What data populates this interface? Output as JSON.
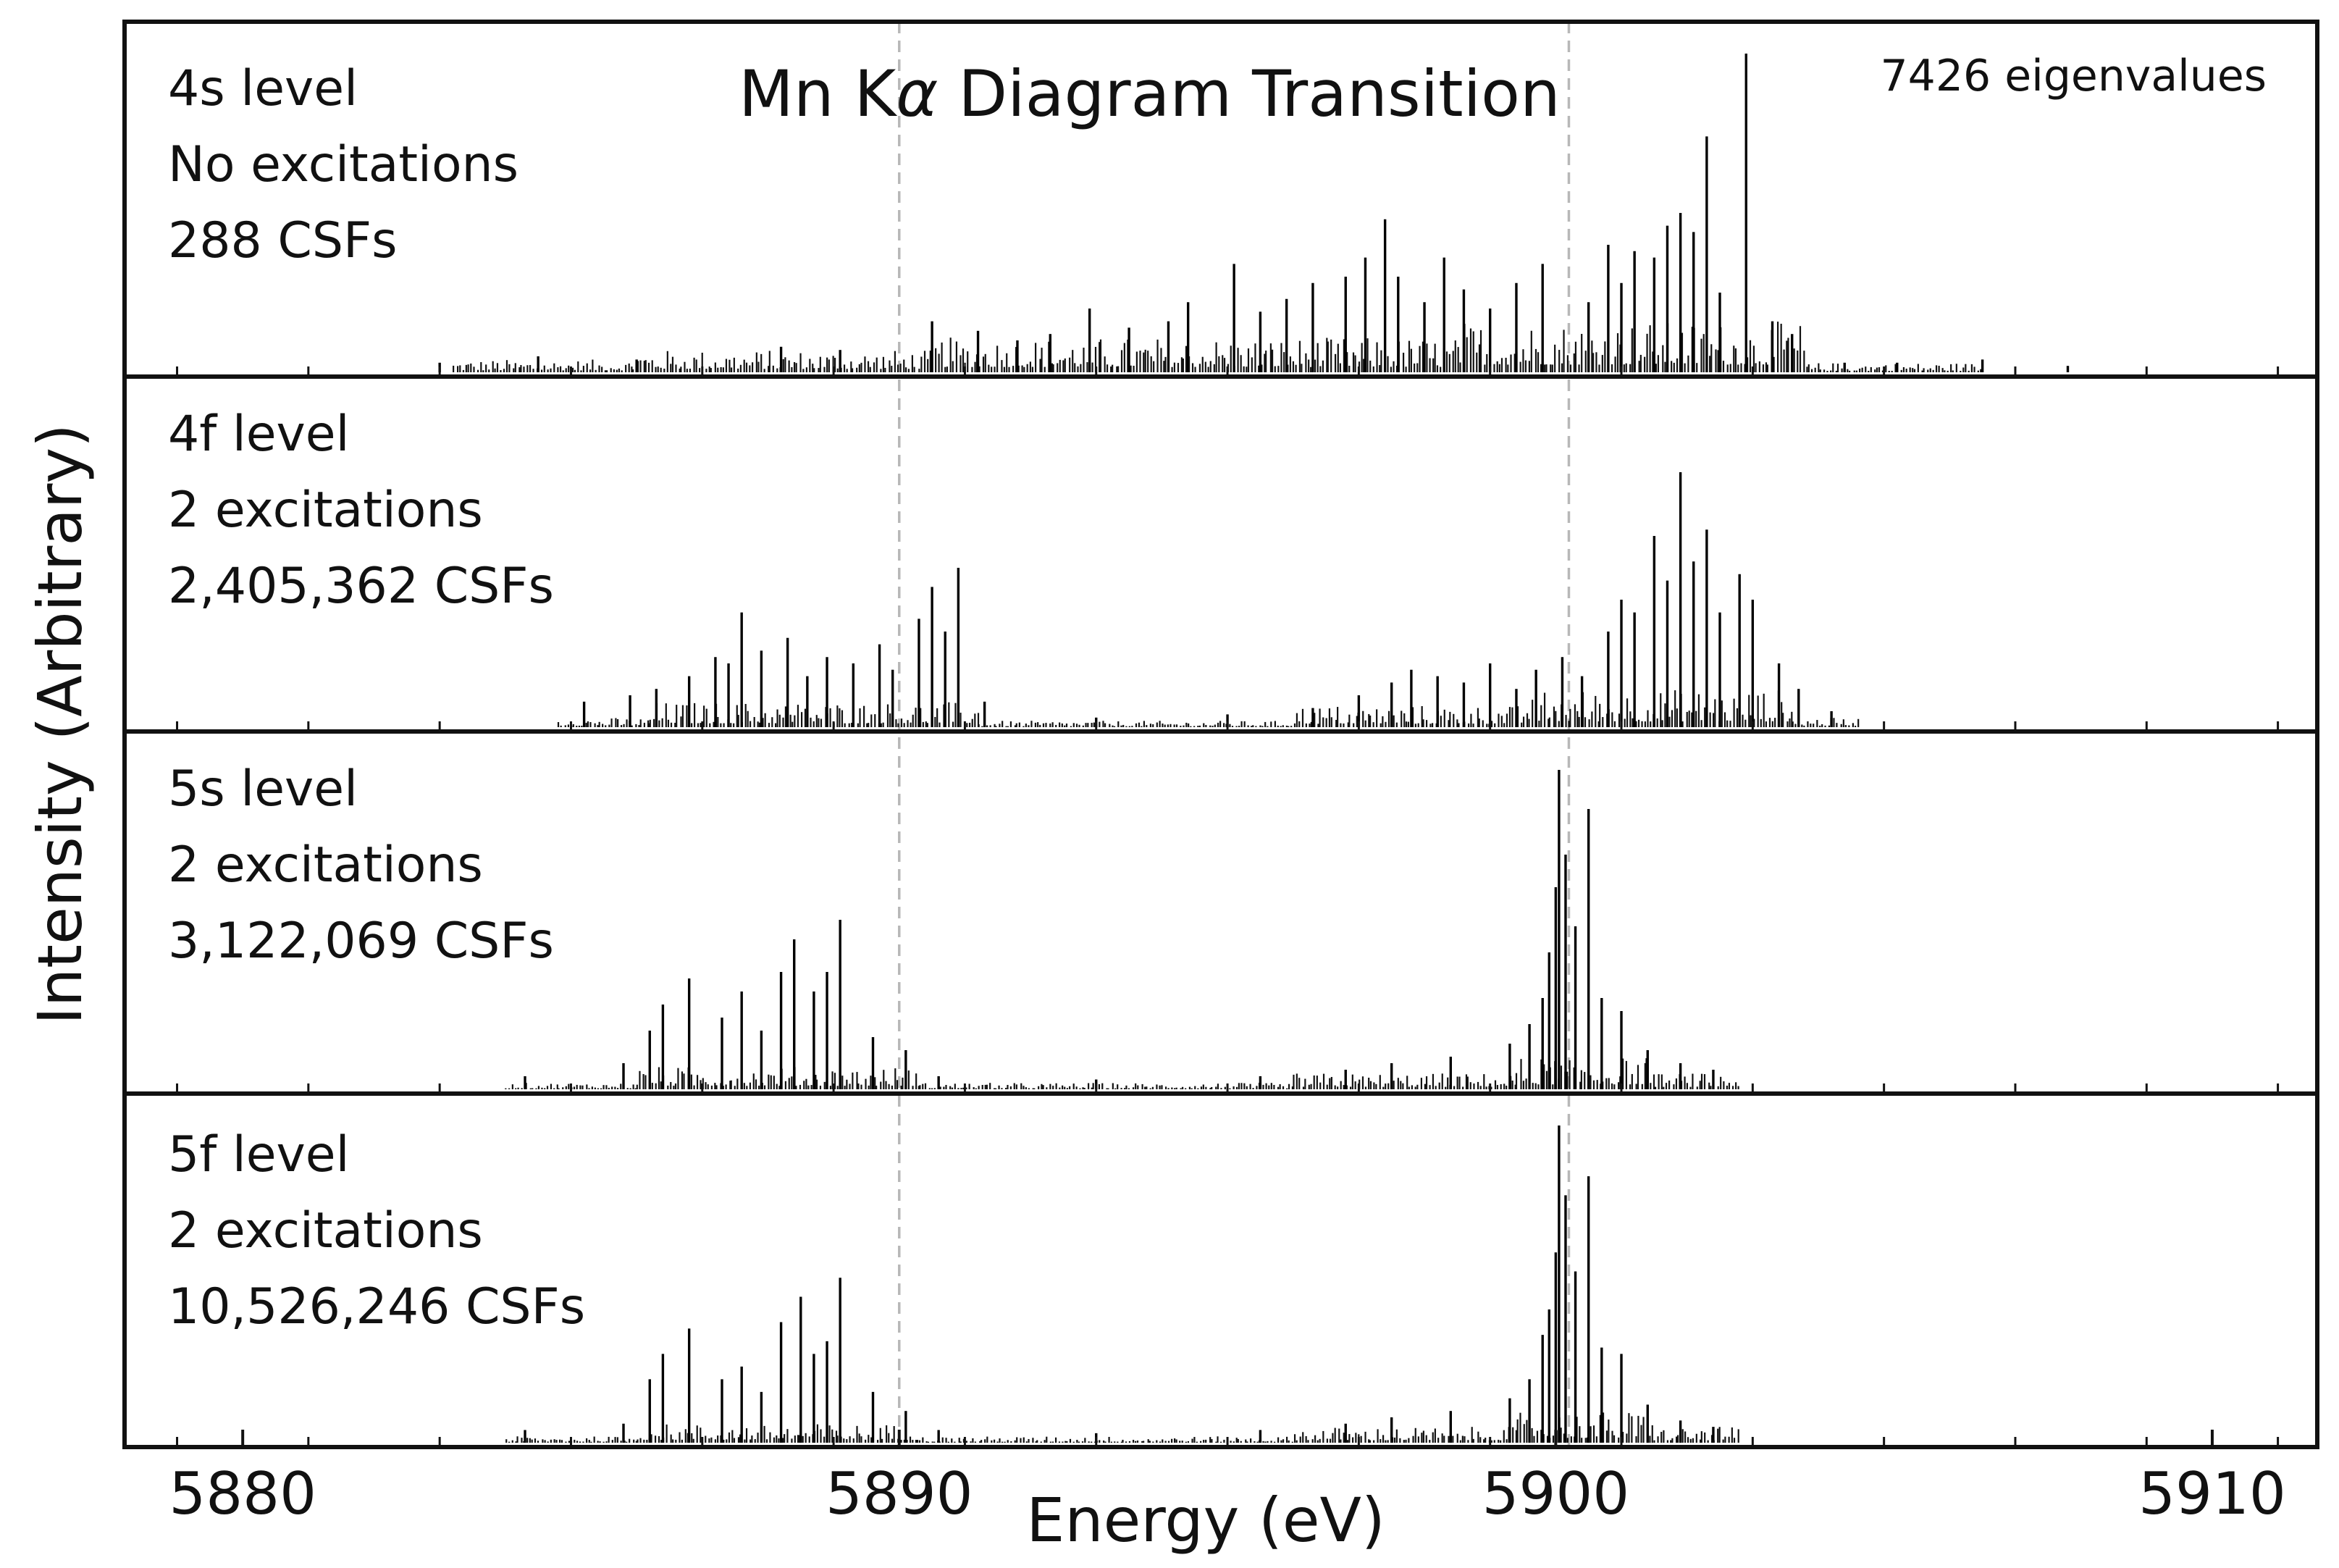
{
  "chart_data": {
    "type": "bar",
    "subtype": "stick-spectrum",
    "title": "Mn Kα Diagram Transition",
    "title_main": "Mn K",
    "title_symbol": "α",
    "title_rest": " Diagram Transition",
    "xlabel": "Energy (eV)",
    "ylabel": "Intensity (Arbitrary)",
    "eigenvalue_note": "7426 eigenvalues",
    "x_unit": "eV",
    "xlim": [
      5878.2,
      5911.6
    ],
    "ylim": [
      0,
      1
    ],
    "x_ticks": [
      5880,
      5890,
      5900,
      5910
    ],
    "x_tick_labels": [
      "5880",
      "5890",
      "5900",
      "5910"
    ],
    "minor_tick_step": 2,
    "reference_lines_eV": [
      5890.0,
      5900.2
    ],
    "panels": [
      {
        "label_level": "4s level",
        "label_excitations": "No excitations",
        "label_csfs": "288 CSFs",
        "sticks": [
          [
            5883.0,
            0.03
          ],
          [
            5884.5,
            0.05
          ],
          [
            5886.0,
            0.04
          ],
          [
            5888.2,
            0.08
          ],
          [
            5889.1,
            0.07
          ],
          [
            5890.5,
            0.16
          ],
          [
            5891.2,
            0.13
          ],
          [
            5891.8,
            0.1
          ],
          [
            5892.3,
            0.12
          ],
          [
            5892.9,
            0.2
          ],
          [
            5893.5,
            0.14
          ],
          [
            5894.1,
            0.16
          ],
          [
            5894.4,
            0.22
          ],
          [
            5895.1,
            0.34
          ],
          [
            5895.5,
            0.19
          ],
          [
            5895.9,
            0.23
          ],
          [
            5896.3,
            0.28
          ],
          [
            5896.8,
            0.3
          ],
          [
            5897.1,
            0.36
          ],
          [
            5897.4,
            0.48
          ],
          [
            5897.6,
            0.3
          ],
          [
            5898.0,
            0.22
          ],
          [
            5898.3,
            0.36
          ],
          [
            5898.6,
            0.26
          ],
          [
            5899.0,
            0.2
          ],
          [
            5899.4,
            0.28
          ],
          [
            5899.8,
            0.34
          ],
          [
            5900.5,
            0.22
          ],
          [
            5900.8,
            0.4
          ],
          [
            5901.0,
            0.28
          ],
          [
            5901.2,
            0.38
          ],
          [
            5901.5,
            0.36
          ],
          [
            5901.7,
            0.46
          ],
          [
            5901.9,
            0.5
          ],
          [
            5902.1,
            0.44
          ],
          [
            5902.3,
            0.74
          ],
          [
            5902.5,
            0.25
          ],
          [
            5902.9,
            1.0
          ],
          [
            5903.3,
            0.16
          ],
          [
            5903.6,
            0.12
          ],
          [
            5904.4,
            0.03
          ],
          [
            5905.2,
            0.03
          ],
          [
            5906.5,
            0.04
          ],
          [
            5907.8,
            0.02
          ]
        ]
      },
      {
        "label_level": "4f level",
        "label_excitations": "2 excitations",
        "label_csfs": "2,405,362 CSFs",
        "sticks": [
          [
            5885.2,
            0.08
          ],
          [
            5885.9,
            0.1
          ],
          [
            5886.3,
            0.12
          ],
          [
            5886.8,
            0.16
          ],
          [
            5887.2,
            0.22
          ],
          [
            5887.4,
            0.2
          ],
          [
            5887.6,
            0.36
          ],
          [
            5887.9,
            0.24
          ],
          [
            5888.3,
            0.28
          ],
          [
            5888.6,
            0.16
          ],
          [
            5888.9,
            0.22
          ],
          [
            5889.3,
            0.2
          ],
          [
            5889.7,
            0.26
          ],
          [
            5889.9,
            0.18
          ],
          [
            5890.3,
            0.34
          ],
          [
            5890.5,
            0.44
          ],
          [
            5890.7,
            0.3
          ],
          [
            5890.9,
            0.5
          ],
          [
            5891.3,
            0.08
          ],
          [
            5893.0,
            0.03
          ],
          [
            5895.0,
            0.04
          ],
          [
            5896.3,
            0.06
          ],
          [
            5897.0,
            0.1
          ],
          [
            5897.5,
            0.14
          ],
          [
            5897.8,
            0.18
          ],
          [
            5898.2,
            0.16
          ],
          [
            5898.6,
            0.14
          ],
          [
            5899.0,
            0.2
          ],
          [
            5899.4,
            0.12
          ],
          [
            5899.7,
            0.18
          ],
          [
            5900.1,
            0.22
          ],
          [
            5900.4,
            0.16
          ],
          [
            5900.8,
            0.3
          ],
          [
            5901.0,
            0.4
          ],
          [
            5901.2,
            0.36
          ],
          [
            5901.5,
            0.6
          ],
          [
            5901.7,
            0.46
          ],
          [
            5901.9,
            0.8
          ],
          [
            5902.1,
            0.52
          ],
          [
            5902.3,
            0.62
          ],
          [
            5902.5,
            0.36
          ],
          [
            5902.8,
            0.48
          ],
          [
            5903.0,
            0.4
          ],
          [
            5903.4,
            0.2
          ],
          [
            5903.7,
            0.12
          ],
          [
            5904.2,
            0.05
          ]
        ]
      },
      {
        "label_level": "5s level",
        "label_excitations": "2 excitations",
        "label_csfs": "3,122,069 CSFs",
        "sticks": [
          [
            5884.3,
            0.04
          ],
          [
            5885.8,
            0.08
          ],
          [
            5886.2,
            0.18
          ],
          [
            5886.4,
            0.26
          ],
          [
            5886.8,
            0.34
          ],
          [
            5887.3,
            0.22
          ],
          [
            5887.6,
            0.3
          ],
          [
            5887.9,
            0.18
          ],
          [
            5888.2,
            0.36
          ],
          [
            5888.4,
            0.46
          ],
          [
            5888.7,
            0.3
          ],
          [
            5888.9,
            0.36
          ],
          [
            5889.1,
            0.52
          ],
          [
            5889.6,
            0.16
          ],
          [
            5890.1,
            0.12
          ],
          [
            5890.6,
            0.04
          ],
          [
            5893.0,
            0.03
          ],
          [
            5895.5,
            0.04
          ],
          [
            5896.8,
            0.06
          ],
          [
            5897.5,
            0.08
          ],
          [
            5898.4,
            0.1
          ],
          [
            5899.3,
            0.14
          ],
          [
            5899.6,
            0.2
          ],
          [
            5899.8,
            0.28
          ],
          [
            5899.9,
            0.42
          ],
          [
            5900.0,
            0.62
          ],
          [
            5900.05,
            0.98
          ],
          [
            5900.15,
            0.72
          ],
          [
            5900.3,
            0.5
          ],
          [
            5900.5,
            0.86
          ],
          [
            5900.7,
            0.28
          ],
          [
            5901.0,
            0.24
          ],
          [
            5901.4,
            0.12
          ],
          [
            5901.9,
            0.08
          ],
          [
            5902.4,
            0.06
          ]
        ]
      },
      {
        "label_level": "5f level",
        "label_excitations": "2 excitations",
        "label_csfs": "10,526,246 CSFs",
        "sticks": [
          [
            5884.3,
            0.04
          ],
          [
            5885.8,
            0.06
          ],
          [
            5886.2,
            0.2
          ],
          [
            5886.4,
            0.28
          ],
          [
            5886.8,
            0.36
          ],
          [
            5887.3,
            0.2
          ],
          [
            5887.6,
            0.24
          ],
          [
            5887.9,
            0.16
          ],
          [
            5888.2,
            0.38
          ],
          [
            5888.5,
            0.46
          ],
          [
            5888.7,
            0.28
          ],
          [
            5888.9,
            0.32
          ],
          [
            5889.1,
            0.52
          ],
          [
            5889.6,
            0.16
          ],
          [
            5890.1,
            0.1
          ],
          [
            5890.6,
            0.04
          ],
          [
            5893.0,
            0.03
          ],
          [
            5895.5,
            0.04
          ],
          [
            5896.8,
            0.06
          ],
          [
            5897.5,
            0.08
          ],
          [
            5898.4,
            0.1
          ],
          [
            5899.3,
            0.14
          ],
          [
            5899.6,
            0.2
          ],
          [
            5899.8,
            0.34
          ],
          [
            5899.9,
            0.42
          ],
          [
            5900.0,
            0.6
          ],
          [
            5900.05,
            1.0
          ],
          [
            5900.15,
            0.78
          ],
          [
            5900.3,
            0.54
          ],
          [
            5900.5,
            0.84
          ],
          [
            5900.7,
            0.3
          ],
          [
            5901.0,
            0.28
          ],
          [
            5901.4,
            0.12
          ],
          [
            5901.9,
            0.07
          ],
          [
            5902.4,
            0.05
          ]
        ]
      }
    ],
    "background_bands_eV": [
      [
        [
          5883.2,
          5886.0,
          0.04
        ],
        [
          5886.0,
          5890.5,
          0.07
        ],
        [
          5890.5,
          5898.5,
          0.11
        ],
        [
          5898.5,
          5903.8,
          0.16
        ],
        [
          5903.8,
          5906.5,
          0.03
        ]
      ],
      [
        [
          5884.8,
          5886.2,
          0.03
        ],
        [
          5886.2,
          5891.2,
          0.08
        ],
        [
          5891.2,
          5896.0,
          0.02
        ],
        [
          5896.0,
          5899.5,
          0.07
        ],
        [
          5899.5,
          5903.6,
          0.12
        ],
        [
          5903.6,
          5904.6,
          0.03
        ]
      ],
      [
        [
          5884.0,
          5886.0,
          0.02
        ],
        [
          5886.0,
          5890.3,
          0.07
        ],
        [
          5890.3,
          5896.0,
          0.02
        ],
        [
          5896.0,
          5899.4,
          0.05
        ],
        [
          5899.4,
          5901.5,
          0.1
        ],
        [
          5901.5,
          5902.8,
          0.05
        ]
      ],
      [
        [
          5884.0,
          5886.0,
          0.02
        ],
        [
          5886.0,
          5890.3,
          0.06
        ],
        [
          5890.3,
          5896.0,
          0.02
        ],
        [
          5896.0,
          5899.4,
          0.05
        ],
        [
          5899.4,
          5901.5,
          0.1
        ],
        [
          5901.5,
          5902.8,
          0.05
        ]
      ]
    ]
  }
}
